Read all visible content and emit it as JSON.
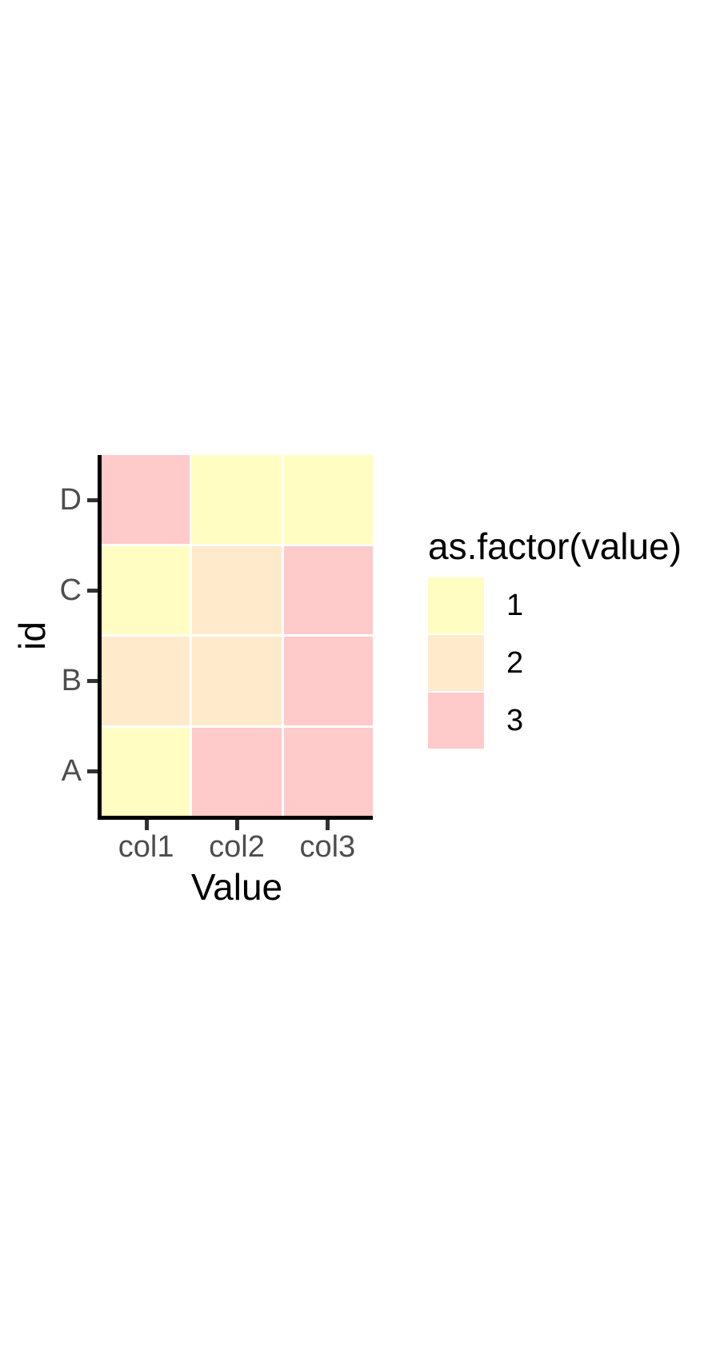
{
  "figure": {
    "background": "#FFFFFF"
  },
  "chart_data": {
    "type": "heatmap",
    "title": "",
    "xlabel": "Value",
    "ylabel": "id",
    "x_categories": [
      "col1",
      "col2",
      "col3"
    ],
    "y_categories": [
      "D",
      "C",
      "B",
      "A"
    ],
    "grid": [
      [
        3,
        1,
        1
      ],
      [
        1,
        2,
        3
      ],
      [
        2,
        2,
        3
      ],
      [
        1,
        3,
        3
      ]
    ],
    "value_colors": {
      "1": "#FFFDC2",
      "2": "#FFEACC",
      "3": "#FFCAC9"
    },
    "legend": {
      "title": "as.factor(value)",
      "position": "right",
      "entries": [
        {
          "label": "1",
          "color": "#FFFDC2"
        },
        {
          "label": "2",
          "color": "#FFEACC"
        },
        {
          "label": "3",
          "color": "#FFCAC9"
        }
      ]
    },
    "axes": {
      "tick_label_color": "#4D4D4D",
      "tick_mark_color": "#333333",
      "axis_line_color": "#000000",
      "title_color": "#000000"
    },
    "gridlines": "off",
    "cell_gap_color": "#FFFFFF"
  }
}
